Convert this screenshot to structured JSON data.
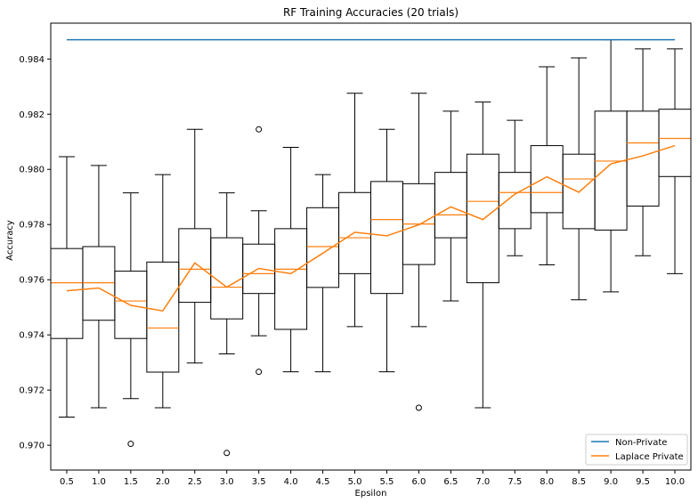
{
  "chart_data": {
    "type": "boxplot",
    "title": "RF Training Accuracies (20 trials)",
    "xlabel": "Epsilon",
    "ylabel": "Accuracy",
    "categories": [
      "0.5",
      "1.0",
      "1.5",
      "2.0",
      "2.5",
      "3.0",
      "3.5",
      "4.0",
      "4.5",
      "5.0",
      "5.5",
      "6.0",
      "6.5",
      "7.0",
      "7.5",
      "8.0",
      "8.5",
      "9.0",
      "9.5",
      "10.0"
    ],
    "ylim": [
      0.9691,
      0.9853
    ],
    "yticks": [
      "0.970",
      "0.972",
      "0.974",
      "0.976",
      "0.978",
      "0.980",
      "0.982",
      "0.984"
    ],
    "yticks_values": [
      0.97,
      0.972,
      0.974,
      0.976,
      0.978,
      0.98,
      0.982,
      0.984
    ],
    "grid": false,
    "legend_position": "lower-right",
    "boxes": [
      {
        "whislo": 0.97102,
        "q1": 0.97387,
        "med": 0.97589,
        "q3": 0.97713,
        "whishi": 0.98046,
        "fliers": []
      },
      {
        "whislo": 0.97136,
        "q1": 0.97453,
        "med": 0.97589,
        "q3": 0.9772,
        "whishi": 0.98014,
        "fliers": []
      },
      {
        "whislo": 0.97169,
        "q1": 0.97387,
        "med": 0.97523,
        "q3": 0.97631,
        "whishi": 0.97915,
        "fliers": [
          0.97005
        ]
      },
      {
        "whislo": 0.97136,
        "q1": 0.97265,
        "med": 0.97425,
        "q3": 0.97664,
        "whishi": 0.97981,
        "fliers": []
      },
      {
        "whislo": 0.97298,
        "q1": 0.97518,
        "med": 0.97638,
        "q3": 0.97785,
        "whishi": 0.98145,
        "fliers": []
      },
      {
        "whislo": 0.97331,
        "q1": 0.97458,
        "med": 0.97573,
        "q3": 0.97752,
        "whishi": 0.97915,
        "fliers": [
          0.96972
        ]
      },
      {
        "whislo": 0.97397,
        "q1": 0.9755,
        "med": 0.97622,
        "q3": 0.97729,
        "whishi": 0.9785,
        "fliers": [
          0.98145,
          0.97266
        ]
      },
      {
        "whislo": 0.97266,
        "q1": 0.9742,
        "med": 0.97638,
        "q3": 0.97785,
        "whishi": 0.9808,
        "fliers": []
      },
      {
        "whislo": 0.97266,
        "q1": 0.97572,
        "med": 0.9772,
        "q3": 0.97861,
        "whishi": 0.97981,
        "fliers": []
      },
      {
        "whislo": 0.9743,
        "q1": 0.97622,
        "med": 0.97752,
        "q3": 0.97916,
        "whishi": 0.98276,
        "fliers": []
      },
      {
        "whislo": 0.97266,
        "q1": 0.9755,
        "med": 0.97818,
        "q3": 0.97956,
        "whishi": 0.98145,
        "fliers": []
      },
      {
        "whislo": 0.9743,
        "q1": 0.97655,
        "med": 0.97802,
        "q3": 0.97948,
        "whishi": 0.98276,
        "fliers": [
          0.97136
        ]
      },
      {
        "whislo": 0.97523,
        "q1": 0.97752,
        "med": 0.97835,
        "q3": 0.97989,
        "whishi": 0.98211,
        "fliers": []
      },
      {
        "whislo": 0.97136,
        "q1": 0.97589,
        "med": 0.97884,
        "q3": 0.98055,
        "whishi": 0.98244,
        "fliers": []
      },
      {
        "whislo": 0.97687,
        "q1": 0.97785,
        "med": 0.97916,
        "q3": 0.97989,
        "whishi": 0.98178,
        "fliers": []
      },
      {
        "whislo": 0.97654,
        "q1": 0.97843,
        "med": 0.97916,
        "q3": 0.98086,
        "whishi": 0.98372,
        "fliers": []
      },
      {
        "whislo": 0.97527,
        "q1": 0.97785,
        "med": 0.97965,
        "q3": 0.98055,
        "whishi": 0.98404,
        "fliers": []
      },
      {
        "whislo": 0.97556,
        "q1": 0.9778,
        "med": 0.9803,
        "q3": 0.98211,
        "whishi": 0.9847,
        "fliers": []
      },
      {
        "whislo": 0.97687,
        "q1": 0.97867,
        "med": 0.98096,
        "q3": 0.98211,
        "whishi": 0.98437,
        "fliers": []
      },
      {
        "whislo": 0.97622,
        "q1": 0.97974,
        "med": 0.98112,
        "q3": 0.98218,
        "whishi": 0.98437,
        "fliers": []
      }
    ],
    "series": [
      {
        "name": "Non-Private",
        "color": "#1f77b4",
        "values": [
          0.9847,
          0.9847,
          0.9847,
          0.9847,
          0.9847,
          0.9847,
          0.9847,
          0.9847,
          0.9847,
          0.9847,
          0.9847,
          0.9847,
          0.9847,
          0.9847,
          0.9847,
          0.9847,
          0.9847,
          0.9847,
          0.9847,
          0.9847
        ]
      },
      {
        "name": "Laplace Private",
        "color": "#ff7f0e",
        "values": [
          0.9756,
          0.9757,
          0.97507,
          0.97487,
          0.97661,
          0.97573,
          0.97641,
          0.97622,
          0.97696,
          0.97772,
          0.97759,
          0.97799,
          0.97864,
          0.97818,
          0.9791,
          0.97973,
          0.97917,
          0.9802,
          0.98049,
          0.98086
        ]
      }
    ]
  }
}
